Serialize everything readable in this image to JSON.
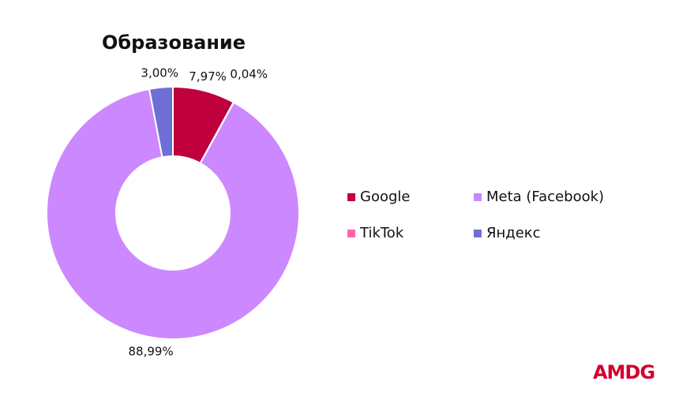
{
  "chart_data": {
    "type": "donut",
    "title": "Образование",
    "series": [
      {
        "name": "Google",
        "color": "#c0003c",
        "values": [
          7.97
        ],
        "value_labels": [
          "7,97%"
        ]
      },
      {
        "name": "TikTok",
        "color": "#ff66aa",
        "values": [
          0.04
        ],
        "value_labels": [
          "0,04%"
        ]
      },
      {
        "name": "Meta (Facebook)",
        "color": "#cc88ff",
        "values": [
          88.99
        ],
        "value_labels": [
          "88,99%"
        ]
      },
      {
        "name": "Яндекс",
        "color": "#6e6fd6",
        "values": [
          3.0
        ],
        "value_labels": [
          "3,00%"
        ]
      }
    ],
    "logo": "AMDG"
  }
}
